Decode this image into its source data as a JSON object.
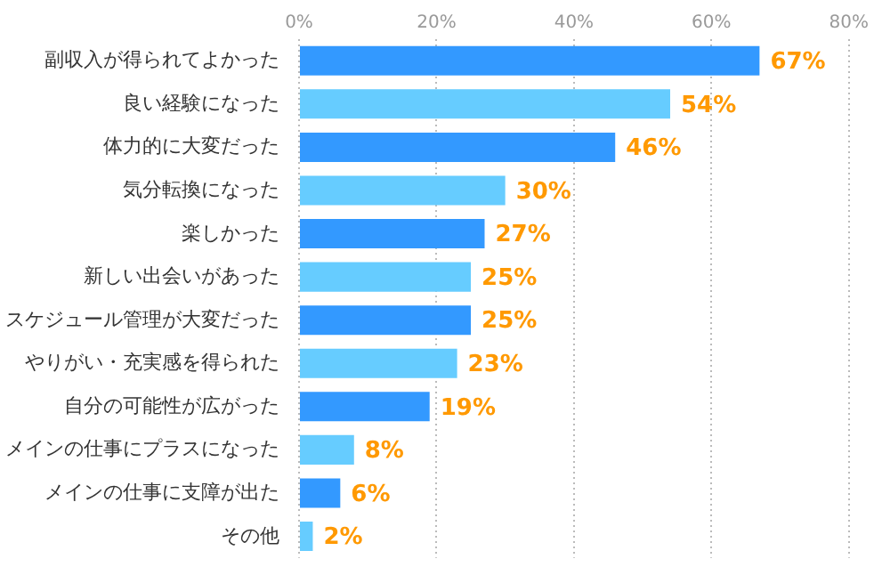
{
  "chart_data": {
    "type": "bar",
    "orientation": "horizontal",
    "categories": [
      "副収入が得られてよかった",
      "良い経験になった",
      "体力的に大変だった",
      "気分転換になった",
      "楽しかった",
      "新しい出会いがあった",
      "スケジュール管理が大変だった",
      "やりがい・充実感を得られた",
      "自分の可能性が広がった",
      "メインの仕事にプラスになった",
      "メインの仕事に支障が出た",
      "その他"
    ],
    "values": [
      67,
      54,
      46,
      30,
      27,
      25,
      25,
      23,
      19,
      8,
      6,
      2
    ],
    "value_labels": [
      "67%",
      "54%",
      "46%",
      "30%",
      "27%",
      "25%",
      "25%",
      "23%",
      "19%",
      "8%",
      "6%",
      "2%"
    ],
    "colors": [
      "#3399ff",
      "#66ccff",
      "#3399ff",
      "#66ccff",
      "#3399ff",
      "#66ccff",
      "#3399ff",
      "#66ccff",
      "#3399ff",
      "#66ccff",
      "#3399ff",
      "#66ccff"
    ],
    "xlim": [
      0,
      80
    ],
    "xticks": [
      {
        "value": 0,
        "label": "0%"
      },
      {
        "value": 20,
        "label": "20%"
      },
      {
        "value": 40,
        "label": "40%"
      },
      {
        "value": 60,
        "label": "60%"
      },
      {
        "value": 80,
        "label": "80%"
      }
    ],
    "grid": "x",
    "legend": false
  }
}
